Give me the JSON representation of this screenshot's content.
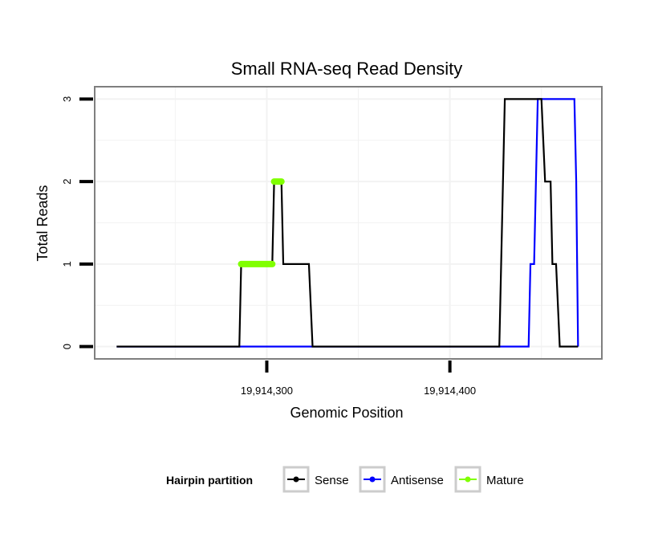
{
  "chart_data": {
    "type": "line",
    "title": "Small RNA-seq Read Density",
    "xlabel": "Genomic Position",
    "ylabel": "Total Reads",
    "xlim": [
      19914206,
      19914483
    ],
    "ylim": [
      -0.15,
      3.15
    ],
    "x_ticks": [
      {
        "value": 19914300,
        "label": "19,914,300"
      },
      {
        "value": 19914400,
        "label": "19,914,400"
      }
    ],
    "y_ticks": [
      {
        "value": 0,
        "label": "0"
      },
      {
        "value": 1,
        "label": "1"
      },
      {
        "value": 2,
        "label": "2"
      },
      {
        "value": 3,
        "label": "3"
      }
    ],
    "grid": true,
    "legend": {
      "title": "Hairpin partition",
      "position": "bottom",
      "entries": [
        "Sense",
        "Antisense",
        "Mature"
      ]
    },
    "series": [
      {
        "name": "Sense",
        "color": "#000000",
        "points": [
          [
            19914218,
            0
          ],
          [
            19914285,
            0
          ],
          [
            19914286,
            1
          ],
          [
            19914303,
            1
          ],
          [
            19914304,
            2
          ],
          [
            19914308,
            2
          ],
          [
            19914309,
            1
          ],
          [
            19914323,
            1
          ],
          [
            19914325,
            0
          ],
          [
            19914427,
            0
          ],
          [
            19914429,
            2
          ],
          [
            19914430,
            3
          ],
          [
            19914450,
            3
          ],
          [
            19914452,
            2
          ],
          [
            19914455,
            2
          ],
          [
            19914456,
            1
          ],
          [
            19914458,
            1
          ],
          [
            19914460,
            0
          ],
          [
            19914470,
            0
          ]
        ]
      },
      {
        "name": "Antisense",
        "color": "#0000ff",
        "points": [
          [
            19914218,
            0
          ],
          [
            19914443,
            0
          ],
          [
            19914444,
            1
          ],
          [
            19914446,
            1
          ],
          [
            19914447,
            2
          ],
          [
            19914448,
            3
          ],
          [
            19914468,
            3
          ],
          [
            19914469,
            2
          ],
          [
            19914470,
            0
          ]
        ]
      },
      {
        "name": "Mature",
        "color": "#80ff00",
        "points": [
          [
            19914286,
            1
          ],
          [
            19914303,
            1
          ],
          null,
          [
            19914304,
            2
          ],
          [
            19914308,
            2
          ]
        ]
      }
    ]
  }
}
